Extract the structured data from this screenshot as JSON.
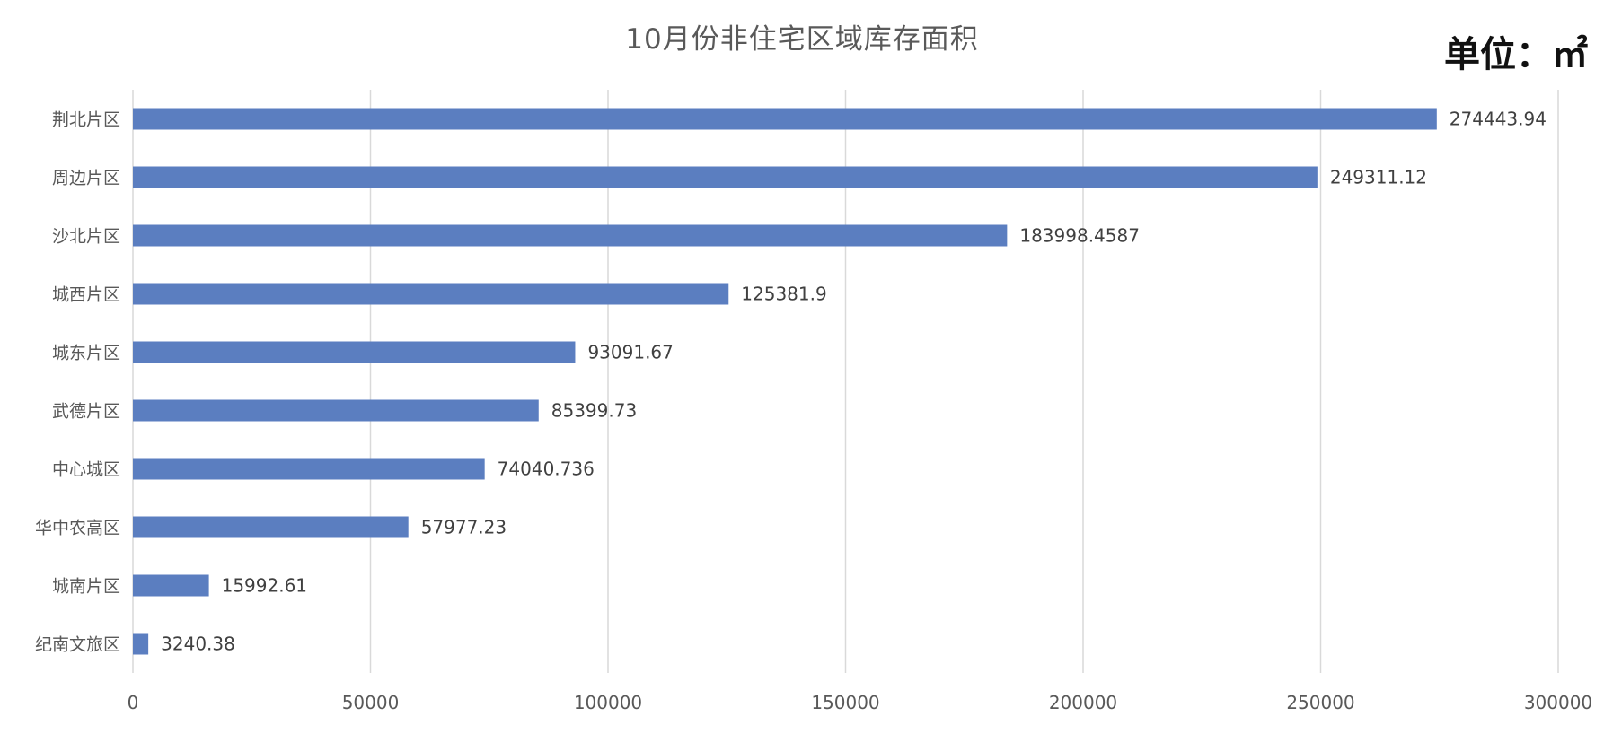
{
  "chart_data": {
    "type": "bar",
    "orientation": "horizontal",
    "title": "10月份非住宅区域库存面积",
    "unit": "单位：㎡",
    "categories": [
      "荆北片区",
      "周边片区",
      "沙北片区",
      "城西片区",
      "城东片区",
      "武德片区",
      "中心城区",
      "华中农高区",
      "城南片区",
      "纪南文旅区"
    ],
    "values": [
      274443.94,
      249311.12,
      183998.4587,
      125381.9,
      93091.67,
      85399.73,
      74040.736,
      57977.23,
      15992.61,
      3240.38
    ],
    "value_labels": [
      "274443.94",
      "249311.12",
      "183998.4587",
      "125381.9",
      "93091.67",
      "85399.73",
      "74040.736",
      "57977.23",
      "15992.61",
      "3240.38"
    ],
    "xlim": [
      0,
      300000
    ],
    "x_ticks": [
      "0",
      "50000",
      "100000",
      "150000",
      "200000",
      "250000",
      "300000"
    ],
    "x_tick_values": [
      0,
      50000,
      100000,
      150000,
      200000,
      250000,
      300000
    ],
    "grid": true,
    "legend": "none",
    "colors": {
      "bar": "#5b7ec0",
      "grid": "#d9d9d9",
      "text": "#595959"
    }
  }
}
